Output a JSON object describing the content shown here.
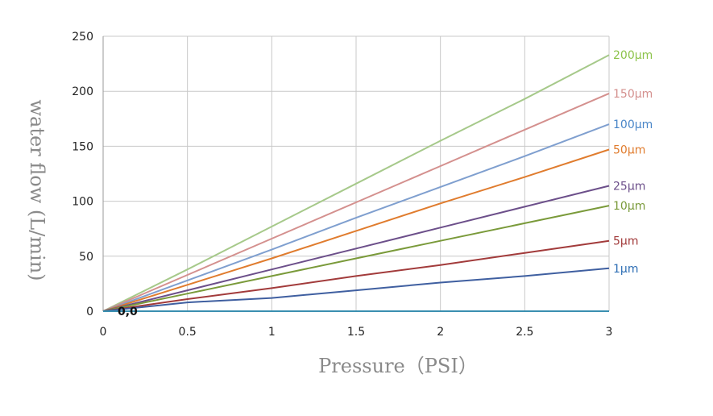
{
  "chart_data": {
    "type": "line",
    "xlabel": "Pressure（PSI）",
    "ylabel": "water flow (L/min)",
    "xlim": [
      0,
      3
    ],
    "ylim": [
      0,
      250
    ],
    "x_ticks": [
      "0",
      "0.5",
      "1",
      "1.5",
      "2",
      "2.5",
      "3"
    ],
    "y_ticks": [
      "0",
      "50",
      "100",
      "150",
      "200",
      "250"
    ],
    "grid": true,
    "origin_annotation": "0,0",
    "series": [
      {
        "name": "200µm",
        "color": "#a6c98a",
        "points": [
          [
            0,
            0
          ],
          [
            0.5,
            38
          ],
          [
            1,
            77
          ],
          [
            1.5,
            116
          ],
          [
            2,
            155
          ],
          [
            2.5,
            193
          ],
          [
            3,
            233
          ]
        ]
      },
      {
        "name": "150µm",
        "color": "#d4908e",
        "points": [
          [
            0,
            0
          ],
          [
            0.5,
            33
          ],
          [
            1,
            66
          ],
          [
            1.5,
            99
          ],
          [
            2,
            132
          ],
          [
            2.5,
            165
          ],
          [
            3,
            198
          ]
        ]
      },
      {
        "name": "100µm",
        "color": "#7f9fcf",
        "points": [
          [
            0,
            0
          ],
          [
            0.5,
            28
          ],
          [
            1,
            56
          ],
          [
            1.5,
            85
          ],
          [
            2,
            113
          ],
          [
            2.5,
            141
          ],
          [
            3,
            170
          ]
        ]
      },
      {
        "name": "50µm",
        "color": "#e07c2e",
        "points": [
          [
            0,
            0
          ],
          [
            0.5,
            24
          ],
          [
            1,
            48
          ],
          [
            1.5,
            73
          ],
          [
            2,
            98
          ],
          [
            2.5,
            122
          ],
          [
            3,
            147
          ]
        ]
      },
      {
        "name": "25µm",
        "color": "#6c4f8a",
        "points": [
          [
            0,
            0
          ],
          [
            0.5,
            19
          ],
          [
            1,
            38
          ],
          [
            1.5,
            57
          ],
          [
            2,
            76
          ],
          [
            2.5,
            95
          ],
          [
            3,
            114
          ]
        ]
      },
      {
        "name": "10µm",
        "color": "#7a9a3a",
        "points": [
          [
            0,
            0
          ],
          [
            0.5,
            16
          ],
          [
            1,
            32
          ],
          [
            1.5,
            48
          ],
          [
            2,
            64
          ],
          [
            2.5,
            80
          ],
          [
            3,
            96
          ]
        ]
      },
      {
        "name": "5µm",
        "color": "#a23b3b",
        "points": [
          [
            0,
            0
          ],
          [
            0.5,
            11
          ],
          [
            1,
            21
          ],
          [
            1.5,
            32
          ],
          [
            2,
            42
          ],
          [
            2.5,
            53
          ],
          [
            3,
            64
          ]
        ]
      },
      {
        "name": "1µm",
        "color": "#3f5fa0",
        "points": [
          [
            0,
            0
          ],
          [
            0.5,
            8
          ],
          [
            1,
            12
          ],
          [
            1.5,
            19
          ],
          [
            2,
            26
          ],
          [
            2.5,
            32
          ],
          [
            3,
            39
          ]
        ]
      },
      {
        "name": "",
        "color": "#3a8fb0",
        "points": [
          [
            0,
            0
          ],
          [
            3,
            0
          ]
        ]
      }
    ],
    "label_colors": {
      "200µm": "#8cc34a",
      "150µm": "#d4908e",
      "100µm": "#4a86c8",
      "50µm": "#e07c2e",
      "25µm": "#6c4f8a",
      "10µm": "#7a9a3a",
      "5µm": "#a23b3b",
      "1µm": "#2f6fb5"
    }
  }
}
